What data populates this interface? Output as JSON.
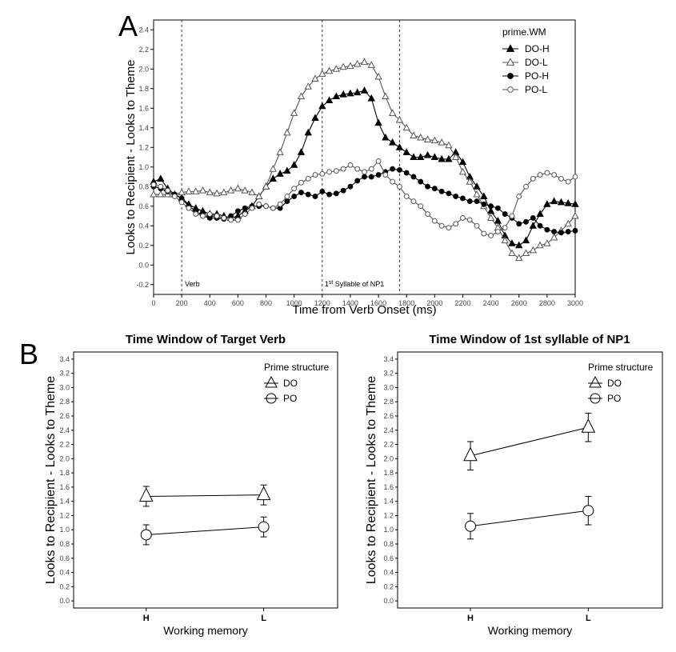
{
  "figure": {
    "panel_a_letter": "A",
    "panel_b_letter": "B"
  },
  "chart_data": [
    {
      "id": "A",
      "type": "line",
      "title": "",
      "xlabel": "Time from Verb Onset (ms)",
      "ylabel": "Looks to Recipient - Looks to Theme",
      "xlim": [
        0,
        3000
      ],
      "ylim": [
        -0.3,
        2.5
      ],
      "xticks": [
        0,
        200,
        400,
        600,
        800,
        1000,
        1200,
        1400,
        1600,
        1800,
        2000,
        2200,
        2400,
        2600,
        2800,
        3000
      ],
      "yticks": [
        -0.2,
        0.0,
        0.2,
        0.4,
        0.6,
        0.8,
        1.0,
        1.2,
        1.4,
        1.6,
        1.8,
        2.0,
        2.2,
        2.4
      ],
      "ytick_labels": [
        "-0.2",
        "0.0",
        "0.2",
        "0.4",
        "0.6",
        "0.8",
        "1.0",
        "1.2",
        "1.4",
        "1.6",
        "1.8",
        "2.0",
        "2.2",
        "2.4"
      ],
      "grid": false,
      "legend": {
        "title": "prime.WM",
        "position": "top-right"
      },
      "vlines": [
        {
          "x": 200,
          "label": "Verb"
        },
        {
          "x": 1200,
          "label": "1st Syllable of NP1"
        },
        {
          "x": 1750,
          "label": ""
        }
      ],
      "series": [
        {
          "name": "DO-H",
          "marker": "triangle-filled",
          "x": [
            0,
            50,
            100,
            150,
            200,
            250,
            300,
            350,
            400,
            450,
            500,
            550,
            600,
            650,
            700,
            750,
            800,
            850,
            900,
            950,
            1000,
            1050,
            1100,
            1150,
            1200,
            1250,
            1300,
            1350,
            1400,
            1450,
            1500,
            1550,
            1600,
            1650,
            1700,
            1750,
            1800,
            1850,
            1900,
            1950,
            2000,
            2050,
            2100,
            2150,
            2200,
            2250,
            2300,
            2350,
            2400,
            2450,
            2500,
            2550,
            2600,
            2650,
            2700,
            2750,
            2800,
            2850,
            2900,
            2950,
            3000
          ],
          "y": [
            0.85,
            0.88,
            0.78,
            0.72,
            0.68,
            0.62,
            0.58,
            0.55,
            0.52,
            0.52,
            0.5,
            0.48,
            0.5,
            0.55,
            0.6,
            0.7,
            0.8,
            0.88,
            0.93,
            0.96,
            1.02,
            1.15,
            1.35,
            1.5,
            1.62,
            1.68,
            1.72,
            1.74,
            1.75,
            1.76,
            1.78,
            1.7,
            1.45,
            1.3,
            1.25,
            1.2,
            1.15,
            1.1,
            1.1,
            1.12,
            1.1,
            1.08,
            1.08,
            1.15,
            1.05,
            0.9,
            0.8,
            0.7,
            0.55,
            0.45,
            0.3,
            0.22,
            0.2,
            0.25,
            0.4,
            0.52,
            0.62,
            0.65,
            0.64,
            0.63,
            0.62
          ]
        },
        {
          "name": "DO-L",
          "marker": "triangle-open",
          "x": [
            0,
            50,
            100,
            150,
            200,
            250,
            300,
            350,
            400,
            450,
            500,
            550,
            600,
            650,
            700,
            750,
            800,
            850,
            900,
            950,
            1000,
            1050,
            1100,
            1150,
            1200,
            1250,
            1300,
            1350,
            1400,
            1450,
            1500,
            1550,
            1600,
            1650,
            1700,
            1750,
            1800,
            1850,
            1900,
            1950,
            2000,
            2050,
            2100,
            2150,
            2200,
            2250,
            2300,
            2350,
            2400,
            2450,
            2500,
            2550,
            2600,
            2650,
            2700,
            2750,
            2800,
            2850,
            2900,
            2950,
            3000
          ],
          "y": [
            0.72,
            0.72,
            0.72,
            0.72,
            0.74,
            0.75,
            0.75,
            0.76,
            0.74,
            0.73,
            0.74,
            0.76,
            0.78,
            0.76,
            0.74,
            0.7,
            0.8,
            0.98,
            1.15,
            1.35,
            1.55,
            1.72,
            1.82,
            1.9,
            1.95,
            1.98,
            2.0,
            2.02,
            2.03,
            2.05,
            2.07,
            2.04,
            1.92,
            1.72,
            1.55,
            1.48,
            1.4,
            1.32,
            1.3,
            1.28,
            1.27,
            1.25,
            1.22,
            1.1,
            0.95,
            0.85,
            0.72,
            0.6,
            0.48,
            0.38,
            0.25,
            0.12,
            0.07,
            0.12,
            0.15,
            0.2,
            0.22,
            0.28,
            0.35,
            0.42,
            0.5
          ]
        },
        {
          "name": "PO-H",
          "marker": "circle-filled",
          "x": [
            0,
            50,
            100,
            150,
            200,
            250,
            300,
            350,
            400,
            450,
            500,
            550,
            600,
            650,
            700,
            750,
            800,
            850,
            900,
            950,
            1000,
            1050,
            1100,
            1150,
            1200,
            1250,
            1300,
            1350,
            1400,
            1450,
            1500,
            1550,
            1600,
            1650,
            1700,
            1750,
            1800,
            1850,
            1900,
            1950,
            2000,
            2050,
            2100,
            2150,
            2200,
            2250,
            2300,
            2350,
            2400,
            2450,
            2500,
            2550,
            2600,
            2650,
            2700,
            2750,
            2800,
            2850,
            2900,
            2950,
            3000
          ],
          "y": [
            0.8,
            0.78,
            0.75,
            0.72,
            0.68,
            0.6,
            0.55,
            0.5,
            0.48,
            0.48,
            0.47,
            0.5,
            0.55,
            0.58,
            0.6,
            0.6,
            0.6,
            0.58,
            0.58,
            0.65,
            0.7,
            0.74,
            0.72,
            0.7,
            0.75,
            0.72,
            0.73,
            0.76,
            0.8,
            0.86,
            0.9,
            0.9,
            0.92,
            0.95,
            0.98,
            0.97,
            0.94,
            0.9,
            0.85,
            0.8,
            0.78,
            0.75,
            0.73,
            0.7,
            0.68,
            0.65,
            0.65,
            0.62,
            0.6,
            0.58,
            0.52,
            0.48,
            0.42,
            0.44,
            0.48,
            0.4,
            0.36,
            0.34,
            0.33,
            0.34,
            0.35
          ]
        },
        {
          "name": "PO-L",
          "marker": "circle-open",
          "x": [
            0,
            50,
            100,
            150,
            200,
            250,
            300,
            350,
            400,
            450,
            500,
            550,
            600,
            650,
            700,
            750,
            800,
            850,
            900,
            950,
            1000,
            1050,
            1100,
            1150,
            1200,
            1250,
            1300,
            1350,
            1400,
            1450,
            1500,
            1550,
            1600,
            1650,
            1700,
            1750,
            1800,
            1850,
            1900,
            1950,
            2000,
            2050,
            2100,
            2150,
            2200,
            2250,
            2300,
            2350,
            2400,
            2450,
            2500,
            2550,
            2600,
            2650,
            2700,
            2750,
            2800,
            2850,
            2900,
            2950,
            3000
          ],
          "y": [
            0.82,
            0.8,
            0.76,
            0.7,
            0.64,
            0.58,
            0.52,
            0.5,
            0.52,
            0.5,
            0.48,
            0.46,
            0.46,
            0.52,
            0.58,
            0.62,
            0.6,
            0.58,
            0.62,
            0.7,
            0.78,
            0.84,
            0.88,
            0.92,
            0.93,
            0.95,
            0.96,
            0.98,
            1.02,
            0.98,
            0.95,
            0.98,
            1.06,
            0.92,
            0.85,
            0.8,
            0.7,
            0.65,
            0.6,
            0.52,
            0.45,
            0.4,
            0.38,
            0.42,
            0.48,
            0.46,
            0.4,
            0.32,
            0.3,
            0.34,
            0.38,
            0.5,
            0.7,
            0.8,
            0.88,
            0.92,
            0.94,
            0.92,
            0.88,
            0.85,
            0.9
          ]
        }
      ]
    },
    {
      "id": "B1",
      "type": "line",
      "title": "Time Window of Target Verb",
      "xlabel": "Working memory",
      "ylabel": "Looks to Recipient - Looks to Theme",
      "categories": [
        "H",
        "L"
      ],
      "ylim": [
        -0.1,
        3.5
      ],
      "yticks": [
        0.0,
        0.2,
        0.4,
        0.6,
        0.8,
        1.0,
        1.2,
        1.4,
        1.6,
        1.8,
        2.0,
        2.2,
        2.4,
        2.6,
        2.8,
        3.0,
        3.2,
        3.4
      ],
      "ytick_labels": [
        "0.0",
        "0.2",
        "0.4",
        "0.6",
        "0.8",
        "1.0",
        "1.2",
        "1.4",
        "1.6",
        "1.8",
        "2.0",
        "2.2",
        "2.4",
        "2.6",
        "2.8",
        "3.0",
        "3.2",
        "3.4"
      ],
      "grid": false,
      "legend": {
        "title": "Prime structure",
        "position": "top-right"
      },
      "series": [
        {
          "name": "DO",
          "marker": "triangle-open",
          "values": [
            1.47,
            1.49
          ],
          "error_low": [
            1.33,
            1.35
          ],
          "error_high": [
            1.61,
            1.63
          ]
        },
        {
          "name": "PO",
          "marker": "circle-open",
          "values": [
            0.93,
            1.04
          ],
          "error_low": [
            0.79,
            0.9
          ],
          "error_high": [
            1.07,
            1.18
          ]
        }
      ]
    },
    {
      "id": "B2",
      "type": "line",
      "title": "Time Window of 1st syllable of NP1",
      "xlabel": "Working memory",
      "ylabel": "Looks to Recipient - Looks to Theme",
      "categories": [
        "H",
        "L"
      ],
      "ylim": [
        -0.1,
        3.5
      ],
      "yticks": [
        0.0,
        0.2,
        0.4,
        0.6,
        0.8,
        1.0,
        1.2,
        1.4,
        1.6,
        1.8,
        2.0,
        2.2,
        2.4,
        2.6,
        2.8,
        3.0,
        3.2,
        3.4
      ],
      "ytick_labels": [
        "0.0",
        "0.2",
        "0.4",
        "0.6",
        "0.8",
        "1.0",
        "1.2",
        "1.4",
        "1.6",
        "1.8",
        "2.0",
        "2.2",
        "2.4",
        "2.6",
        "2.8",
        "3.0",
        "3.2",
        "3.4"
      ],
      "grid": false,
      "legend": {
        "title": "Prime structure",
        "position": "top-right"
      },
      "series": [
        {
          "name": "DO",
          "marker": "triangle-open",
          "values": [
            2.04,
            2.44
          ],
          "error_low": [
            1.84,
            2.24
          ],
          "error_high": [
            2.24,
            2.64
          ]
        },
        {
          "name": "PO",
          "marker": "circle-open",
          "values": [
            1.05,
            1.27
          ],
          "error_low": [
            0.87,
            1.07
          ],
          "error_high": [
            1.23,
            1.47
          ]
        }
      ]
    }
  ]
}
